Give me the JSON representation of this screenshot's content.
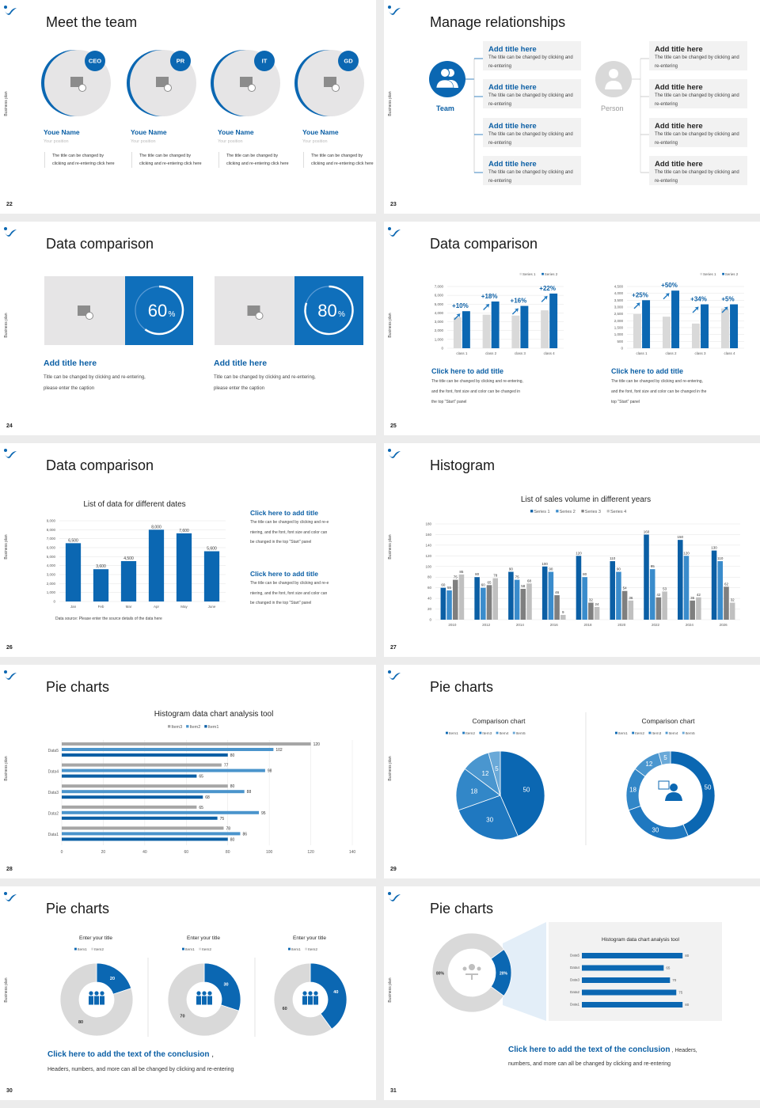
{
  "side_label": "Business plan",
  "colors": {
    "primary": "#0b67b2",
    "light_gray": "#d9d9d9",
    "panel": "#f2f2f2"
  },
  "s22": {
    "page": "22",
    "title": "Meet the team",
    "members": [
      {
        "badge": "CEO",
        "name": "Youe Name",
        "position": "Your position",
        "desc": "The title can be changed by clicking and re-entering click here"
      },
      {
        "badge": "PR",
        "name": "Youe Name",
        "position": "Your position",
        "desc": "The title can be changed by clicking and re-entering click here"
      },
      {
        "badge": "IT",
        "name": "Youe Name",
        "position": "Your position",
        "desc": "The title can be changed by clicking and re-entering click here"
      },
      {
        "badge": "GD",
        "name": "Youe Name",
        "position": "Your position",
        "desc": "The title can be changed by clicking and re-entering click here"
      }
    ]
  },
  "s23": {
    "page": "23",
    "title": "Manage relationships",
    "team_label": "Team",
    "person_label": "Person",
    "left": [
      {
        "h": "Add title here",
        "d": "The title can be changed by clicking and re-entering"
      },
      {
        "h": "Add title here",
        "d": "The title can be changed by clicking and re-entering"
      },
      {
        "h": "Add title here",
        "d": "The title can be changed by clicking and re-entering"
      },
      {
        "h": "Add title here",
        "d": "The title can be changed by clicking and re-entering"
      }
    ],
    "right": [
      {
        "h": "Add title here",
        "d": "The title can be changed by clicking and re-entering"
      },
      {
        "h": "Add title here",
        "d": "The title can be changed by clicking and re-entering"
      },
      {
        "h": "Add title here",
        "d": "The title can be changed by clicking and re-entering"
      },
      {
        "h": "Add title here",
        "d": "The title can be changed by clicking and re-entering"
      }
    ]
  },
  "s24": {
    "page": "24",
    "title": "Data comparison",
    "cards": [
      {
        "value": "60",
        "unit": "%",
        "progress": 60,
        "h": "Add title here",
        "d1": "Title can be changed by clicking and re-entering,",
        "d2": "please enter the caption"
      },
      {
        "value": "80",
        "unit": "%",
        "progress": 80,
        "h": "Add title here",
        "d1": "Title can be changed by clicking and re-entering,",
        "d2": "please enter the caption"
      }
    ]
  },
  "s25": {
    "page": "25",
    "title": "Data comparison",
    "captions": [
      {
        "h": "Click here to add title",
        "d1": "The title can be changed by clicking and re-entering,",
        "d2": "and the font, font size and color can be changed in",
        "d3": "the top \"Start\" panel"
      },
      {
        "h": "Click here to add title",
        "d1": "The title can be changed by clicking and re-entering,",
        "d2": "and the font, font size and color can be changed in the",
        "d3": "top \"Start\" panel"
      }
    ]
  },
  "s26": {
    "page": "26",
    "title": "Data comparison",
    "source": "Data source: Please enter the source details of the data here",
    "notes": [
      {
        "h": "Click here to add title",
        "d1": "The title can be changed by clicking and re-e",
        "d2": "ntering, and the font, font size and color can",
        "d3": "be changed in the top \"Start\" panel"
      },
      {
        "h": "Click here to add title",
        "d1": "The title can be changed by clicking and re-e",
        "d2": "ntering, and the font, font size and color can",
        "d3": "be changed in the top \"Start\" panel"
      }
    ]
  },
  "s27": {
    "page": "27",
    "title": "Histogram"
  },
  "s28": {
    "page": "28",
    "title": "Pie charts"
  },
  "s29": {
    "page": "29",
    "title": "Pie charts"
  },
  "s30": {
    "page": "30",
    "title": "Pie charts",
    "conclusion": "Click here to add the text of the conclusion",
    "comma": " ,",
    "text": "Headers, numbers, and more can all be changed by clicking and re-entering"
  },
  "s31": {
    "page": "31",
    "title": "Pie charts",
    "conclusion": "Click here to add the text of the conclusion",
    "tail": " , Headers,",
    "text": "numbers, and more can all be changed by clicking and re-entering"
  },
  "chart_data": [
    {
      "id": "s25a",
      "type": "bar",
      "categories": [
        "class 1",
        "class 2",
        "class 3",
        "class 4"
      ],
      "series": [
        {
          "name": "Series 1",
          "values": [
            3500,
            3800,
            3700,
            4300
          ],
          "color": "#d9d9d9"
        },
        {
          "name": "Series 2",
          "values": [
            4200,
            5300,
            4800,
            6200
          ],
          "color": "#0b67b2"
        }
      ],
      "ylim": [
        0,
        7000
      ],
      "ystep": 1000,
      "annotations": [
        "+10%",
        "+18%",
        "+16%",
        "+22%"
      ],
      "legend": "top-right",
      "grid": true
    },
    {
      "id": "s25b",
      "type": "bar",
      "categories": [
        "class 1",
        "class 2",
        "class 3",
        "class 4"
      ],
      "series": [
        {
          "name": "Series 1",
          "values": [
            2500,
            2300,
            1800,
            2900
          ],
          "color": "#d9d9d9"
        },
        {
          "name": "Series 2",
          "values": [
            3500,
            4200,
            3200,
            3200
          ],
          "color": "#0b67b2"
        }
      ],
      "ylim": [
        0,
        4500
      ],
      "ystep": 500,
      "annotations": [
        "+25%",
        "+50%",
        "+34%",
        "+5%"
      ],
      "legend": "top-right",
      "grid": true
    },
    {
      "id": "s26",
      "type": "bar",
      "title": "List of data for different dates",
      "categories": [
        "Jan",
        "Feb",
        "Mar",
        "Apr",
        "May",
        "June"
      ],
      "series": [
        {
          "values": [
            6500,
            3600,
            4500,
            8000,
            7600,
            5600
          ],
          "color": "#0b67b2"
        }
      ],
      "ylim": [
        0,
        9000
      ],
      "ystep": 1000,
      "data_labels": true,
      "grid": true
    },
    {
      "id": "s27",
      "type": "bar",
      "title": "List of sales volume in different years",
      "categories": [
        "2010",
        "2012",
        "2014",
        "2016",
        "2018",
        "2020",
        "2022",
        "2024",
        "2026"
      ],
      "series": [
        {
          "name": "Series 1",
          "values": [
            60,
            80,
            90,
            100,
            120,
            110,
            160,
            150,
            130
          ],
          "color": "#0b5fa5"
        },
        {
          "name": "Series 2",
          "values": [
            55,
            60,
            75,
            90,
            80,
            90,
            95,
            120,
            110
          ],
          "color": "#3a8ccc"
        },
        {
          "name": "Series 3",
          "values": [
            75,
            65,
            58,
            46,
            32,
            54,
            42,
            36,
            62
          ],
          "color": "#7f7f7f"
        },
        {
          "name": "Series 4",
          "values": [
            85,
            78,
            68,
            9,
            24,
            36,
            53,
            42,
            32
          ],
          "color": "#c0c0c0"
        }
      ],
      "ylim": [
        0,
        180
      ],
      "ystep": 20,
      "data_labels": true,
      "legend": "top",
      "grid": true
    },
    {
      "id": "s28",
      "type": "bar",
      "orientation": "horizontal",
      "title": "Histogram data chart analysis tool",
      "categories": [
        "Data5",
        "Data4",
        "Data3",
        "Data2",
        "Data1"
      ],
      "series": [
        {
          "name": "Item3",
          "values": [
            120,
            77,
            80,
            65,
            78
          ],
          "color": "#a6a6a6"
        },
        {
          "name": "Item2",
          "values": [
            102,
            98,
            88,
            95,
            86
          ],
          "color": "#4a94cc"
        },
        {
          "name": "Item1",
          "values": [
            80,
            65,
            68,
            75,
            80
          ],
          "color": "#0b5fa5"
        }
      ],
      "xlim": [
        0,
        140
      ],
      "xstep": 20,
      "data_labels": true,
      "legend": "top",
      "grid": true
    },
    {
      "id": "s29a",
      "type": "pie",
      "title": "Comparison chart",
      "labels": [
        "Item1",
        "Item2",
        "Item3",
        "Item4",
        "Item5"
      ],
      "values": [
        50,
        30,
        18,
        12,
        5
      ],
      "colors": [
        "#0b67b2",
        "#1f78c0",
        "#3287c8",
        "#4a96cf",
        "#6aa9d8"
      ]
    },
    {
      "id": "s29b",
      "type": "pie",
      "donut": true,
      "title": "Comparison chart",
      "labels": [
        "Item1",
        "Item2",
        "Item3",
        "Item4",
        "Item5"
      ],
      "values": [
        50,
        30,
        18,
        12,
        5
      ],
      "colors": [
        "#0b67b2",
        "#1f78c0",
        "#3287c8",
        "#4a96cf",
        "#6aa9d8"
      ]
    },
    {
      "id": "s30a",
      "type": "pie",
      "donut": true,
      "title": "Enter your title",
      "labels": [
        "Item1",
        "Item2"
      ],
      "values": [
        20,
        80
      ],
      "colors": [
        "#0b67b2",
        "#d9d9d9"
      ]
    },
    {
      "id": "s30b",
      "type": "pie",
      "donut": true,
      "title": "Enter your title",
      "labels": [
        "Item1",
        "Item2"
      ],
      "values": [
        30,
        70
      ],
      "colors": [
        "#0b67b2",
        "#d9d9d9"
      ]
    },
    {
      "id": "s30c",
      "type": "pie",
      "donut": true,
      "title": "Enter your title",
      "labels": [
        "Item1",
        "Item2"
      ],
      "values": [
        40,
        60
      ],
      "colors": [
        "#0b67b2",
        "#d9d9d9"
      ]
    },
    {
      "id": "s31a",
      "type": "pie",
      "donut": true,
      "values": [
        20,
        80
      ],
      "value_labels": [
        "20%",
        "80%"
      ],
      "colors": [
        "#0b67b2",
        "#d9d9d9"
      ]
    },
    {
      "id": "s31b",
      "type": "bar",
      "orientation": "horizontal",
      "title": "Histogram data chart analysis tool",
      "categories": [
        "Data5",
        "Data4",
        "Data3",
        "Data2",
        "Data1"
      ],
      "series": [
        {
          "values": [
            80,
            65,
            70,
            75,
            80
          ],
          "color": "#0b67b2"
        }
      ],
      "data_labels": true
    }
  ]
}
